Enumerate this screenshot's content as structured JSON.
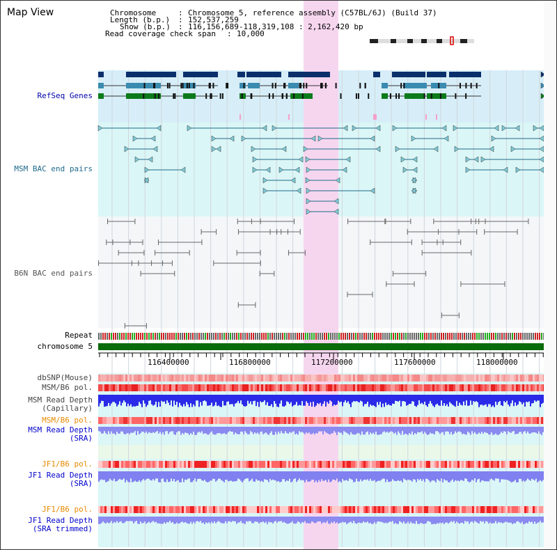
{
  "page": {
    "title": "Map View"
  },
  "info": {
    "chromosome_label": "Chromosome",
    "chromosome_value": "Chromosome 5, reference assembly (C57BL/6J) (Build 37)",
    "length_label": "Length (b.p.)",
    "length_value": "152,537,259",
    "show_label": "Show (b.p.)",
    "show_value": "116,156,689-118,319,108 : 2,162,420 bp",
    "coverage_label": "Read coverage check span",
    "coverage_value": "10,000"
  },
  "tracks": {
    "refseq": "RefSeq Genes",
    "msm_bac": "MSM BAC end pairs",
    "b6n_bac": "B6N BAC end pairs",
    "repeat": "Repeat",
    "chromosome": "chromosome 5",
    "dbsnp": "dbSNP(Mouse)",
    "msm_b6_pol_1": "MSM/B6 pol.",
    "msm_depth_cap_1": "MSM Read Depth",
    "msm_depth_cap_2": "(Capillary)",
    "msm_b6_pol_2": "MSM/B6 pol.",
    "msm_depth_sra_1": "MSM Read Depth",
    "msm_depth_sra_2": "(SRA)",
    "jf1_b6_pol_1": "JF1/B6 pol.",
    "jf1_depth_sra_1": "JF1 Read Depth",
    "jf1_depth_sra_2": "(SRA)",
    "jf1_b6_pol_2": "JF1/B6 pol.",
    "jf1_depth_trim_1": "JF1 Read Depth",
    "jf1_depth_trim_2": "(SRA trimmed)"
  },
  "axis": {
    "ticks": [
      "116400000",
      "116800000",
      "117200000",
      "117600000",
      "118000000"
    ]
  },
  "colors": {
    "gene_blue": "#0b2f6b",
    "gene_lightblue": "#3a8bb0",
    "gene_green": "#0b7a1a",
    "highlight": "#f6d6ef",
    "msm_line": "#1d6a8a",
    "b6n_line": "#555555",
    "orange_label": "#e58a00",
    "blue_label": "#0000cc",
    "chrom_bar": "#0a6b0a"
  }
}
